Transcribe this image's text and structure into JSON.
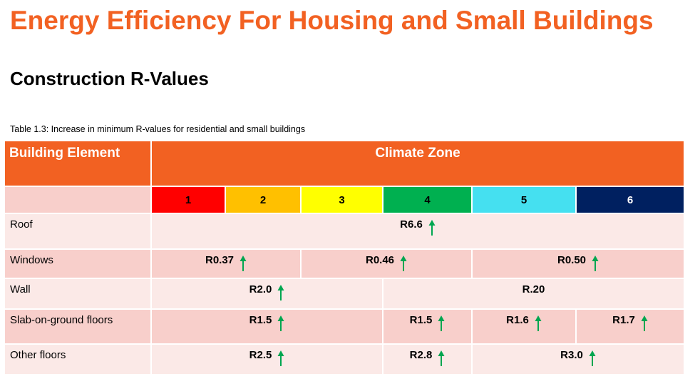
{
  "header": {
    "title": "Energy Efficiency For Housing and Small Buildings",
    "subtitle": "Construction R-Values"
  },
  "table": {
    "caption": "Table 1.3: Increase in minimum R-values for residential and small buildings",
    "columns": [
      "Building Element",
      "Climate Zone"
    ],
    "zones": [
      1,
      2,
      3,
      4,
      5,
      6
    ],
    "rows": [
      {
        "label": "Roof",
        "cells": [
          "R6.6"
        ]
      },
      {
        "label": "Windows",
        "cells": [
          "R0.37",
          "R0.46",
          "R0.50"
        ]
      },
      {
        "label": "Wall",
        "cells": [
          "R2.0",
          "R.20"
        ]
      },
      {
        "label": "Slab-on-ground floors",
        "cells": [
          "R1.5",
          "R1.5",
          "R1.6",
          "R1.7"
        ]
      },
      {
        "label": "Other floors",
        "cells": [
          "R2.5",
          "R2.8",
          "R3.0"
        ]
      }
    ]
  }
}
